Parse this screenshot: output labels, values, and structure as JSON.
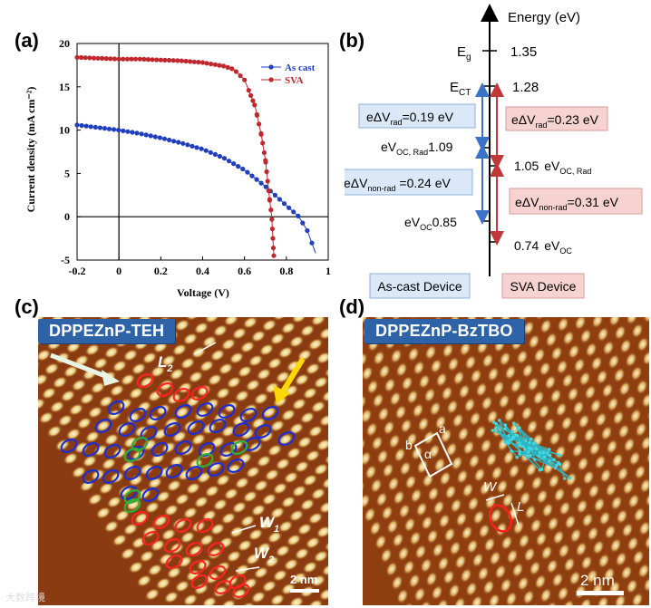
{
  "panel_labels": {
    "a": "(a)",
    "b": "(b)",
    "c": "(c)",
    "d": "(d)"
  },
  "chart_data": {
    "type": "scatter",
    "xlabel": "Voltage (V)",
    "ylabel": "Current density (mA cm⁻²)",
    "xlim": [
      -0.2,
      1.0
    ],
    "ylim": [
      -5,
      20
    ],
    "x_ticks": [
      "-0.2",
      "0",
      "0.2",
      "0.4",
      "0.6",
      "0.8",
      "1"
    ],
    "y_ticks": [
      "-5",
      "0",
      "5",
      "10",
      "15",
      "20"
    ],
    "grid": false,
    "legend_position": "top-right",
    "series": [
      {
        "name": "As cast",
        "color": "#1f3fbf",
        "jsc": 10.0,
        "voc": 0.86,
        "points": [
          [
            -0.2,
            10.6
          ],
          [
            -0.1,
            10.3
          ],
          [
            0.0,
            10.0
          ],
          [
            0.1,
            9.6
          ],
          [
            0.2,
            9.1
          ],
          [
            0.3,
            8.5
          ],
          [
            0.4,
            7.8
          ],
          [
            0.5,
            6.8
          ],
          [
            0.6,
            5.4
          ],
          [
            0.7,
            3.5
          ],
          [
            0.8,
            1.3
          ],
          [
            0.86,
            0.0
          ],
          [
            0.9,
            -1.6
          ],
          [
            0.94,
            -4.2
          ]
        ]
      },
      {
        "name": "SVA",
        "color": "#c0282d",
        "jsc": 18.2,
        "voc": 0.73,
        "points": [
          [
            -0.2,
            18.4
          ],
          [
            -0.1,
            18.3
          ],
          [
            0.0,
            18.2
          ],
          [
            0.1,
            18.2
          ],
          [
            0.2,
            18.1
          ],
          [
            0.3,
            18.0
          ],
          [
            0.4,
            17.8
          ],
          [
            0.5,
            17.4
          ],
          [
            0.55,
            17.0
          ],
          [
            0.6,
            15.8
          ],
          [
            0.65,
            12.8
          ],
          [
            0.68,
            9.5
          ],
          [
            0.7,
            6.5
          ],
          [
            0.72,
            2.0
          ],
          [
            0.73,
            0.0
          ],
          [
            0.74,
            -4.5
          ]
        ]
      }
    ]
  },
  "energy": {
    "axis_label": "Energy (eV)",
    "left_levels": [
      {
        "label": "E",
        "sub": "g",
        "value": "1.35"
      },
      {
        "label": "E",
        "sub": "CT",
        "value": "1.28"
      }
    ],
    "ascast_voc_rad": {
      "label": "eV",
      "sub": "OC, Rad",
      "value": "1.09"
    },
    "ascast_voc": {
      "label": "eV",
      "sub": "OC",
      "value": "0.85"
    },
    "sva_voc_rad": {
      "value": "1.05",
      "label": "eV",
      "sub": "OC, Rad"
    },
    "sva_voc": {
      "value": "0.74",
      "label": "eV",
      "sub": "OC"
    },
    "ascast_rad": {
      "pre": "eΔV",
      "sub": "rad",
      "post": "=0.19 eV"
    },
    "ascast_nonrad": {
      "pre": "eΔV",
      "sub": "non-rad",
      "post": " =0.24 eV"
    },
    "sva_rad": {
      "pre": "eΔV",
      "sub": "rad",
      "post": "=0.23 eV"
    },
    "sva_nonrad": {
      "pre": "eΔV",
      "sub": "non-rad",
      "post": "=0.31 eV"
    },
    "ascast_device": "As-cast Device",
    "sva_device": "SVA Device",
    "colors": {
      "blue_box": "#dbe8f7",
      "red_box": "#f6d3d1",
      "blue_arrow": "#3b73c9",
      "red_arrow": "#c0383a"
    }
  },
  "stm_c": {
    "title": "DPPEZnP-TEH",
    "labels": {
      "L": "L",
      "L_sub": "2",
      "W1": "W",
      "W1_sub": "1",
      "W2": "W",
      "W2_sub": "2"
    },
    "scale_bar": "2 nm"
  },
  "stm_d": {
    "title": "DPPEZnP-BzTBO",
    "labels": {
      "a": "a",
      "b": "b",
      "alpha": "α",
      "W": "W",
      "L": "L"
    },
    "scale_bar": "2 nm"
  },
  "watermark": "大数跨境"
}
